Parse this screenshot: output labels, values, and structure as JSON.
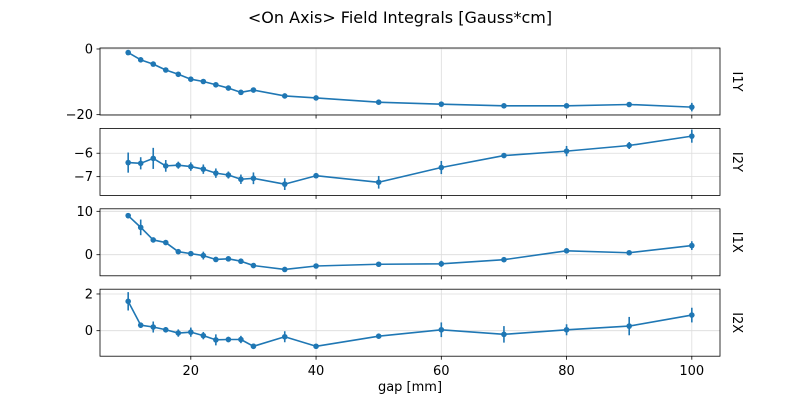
{
  "colors": {
    "line": "#1f77b4",
    "grid": "#dcdcdc",
    "frame": "#000000",
    "background": "#ffffff",
    "text": "#000000"
  },
  "chart_data": {
    "type": "line",
    "title": "<On Axis> Field Integrals [Gauss*cm]",
    "xlabel": "gap [mm]",
    "grid": true,
    "legend": "none",
    "marker": "point",
    "error_bars": true,
    "x": [
      10,
      12,
      14,
      16,
      18,
      20,
      22,
      24,
      26,
      28,
      30,
      35,
      40,
      50,
      60,
      70,
      80,
      90,
      100
    ],
    "xlim": [
      5.5,
      104.5
    ],
    "x_ticks": [
      20,
      40,
      60,
      80,
      100
    ],
    "x_tick_labels": [
      "20",
      "40",
      "60",
      "80",
      "100"
    ],
    "subplots": [
      {
        "ylabel": "I1Y",
        "ylabel_position": "right",
        "y_ticks": [
          0,
          -20
        ],
        "ylim": [
          -20.1,
          0.3
        ],
        "values": [
          -1.1,
          -3.3,
          -4.6,
          -6.4,
          -7.7,
          -9.2,
          -9.9,
          -10.9,
          -11.9,
          -13.2,
          -12.5,
          -14.3,
          -14.9,
          -16.2,
          -16.8,
          -17.3,
          -17.3,
          -16.9,
          -17.7
        ],
        "errors": [
          0.2,
          0.2,
          0.2,
          0.2,
          0.2,
          0.2,
          0.2,
          0.2,
          0.2,
          0.2,
          0.2,
          0.2,
          0.2,
          0.6,
          0.5,
          0.2,
          0.2,
          0.4,
          1.3
        ]
      },
      {
        "ylabel": "I2Y",
        "ylabel_position": "right",
        "y_ticks": [
          -6,
          -7
        ],
        "ylim": [
          -7.8,
          -4.94
        ],
        "values": [
          -6.4,
          -6.43,
          -6.22,
          -6.54,
          -6.51,
          -6.57,
          -6.68,
          -6.85,
          -6.93,
          -7.11,
          -7.07,
          -7.32,
          -6.96,
          -7.24,
          -6.61,
          -6.1,
          -5.91,
          -5.67,
          -5.27
        ],
        "errors": [
          0.43,
          0.26,
          0.45,
          0.25,
          0.15,
          0.18,
          0.2,
          0.2,
          0.15,
          0.2,
          0.25,
          0.25,
          0.1,
          0.27,
          0.28,
          0.1,
          0.22,
          0.15,
          0.28
        ]
      },
      {
        "ylabel": "I1X",
        "ylabel_position": "right",
        "y_ticks": [
          10,
          0
        ],
        "ylim": [
          -4.86,
          10.58
        ],
        "values": [
          9.0,
          6.3,
          3.4,
          2.8,
          0.7,
          0.25,
          -0.2,
          -1.1,
          -0.95,
          -1.5,
          -2.5,
          -3.4,
          -2.6,
          -2.2,
          -2.1,
          -1.15,
          0.9,
          0.45,
          2.1
        ],
        "errors": [
          0.6,
          1.8,
          0.45,
          0.4,
          0.3,
          0.5,
          0.9,
          0.4,
          0.3,
          0.4,
          0.3,
          0.3,
          0.4,
          0.3,
          0.7,
          0.4,
          0.5,
          0.3,
          1.0
        ]
      },
      {
        "ylabel": "I2X",
        "ylabel_position": "right",
        "y_ticks": [
          2,
          0
        ],
        "ylim": [
          -1.39,
          2.26
        ],
        "values": [
          1.6,
          0.3,
          0.2,
          0.05,
          -0.13,
          -0.08,
          -0.27,
          -0.5,
          -0.48,
          -0.48,
          -0.85,
          -0.33,
          -0.85,
          -0.3,
          0.05,
          -0.2,
          0.05,
          0.25,
          0.85
        ],
        "errors": [
          0.5,
          0.15,
          0.3,
          0.15,
          0.2,
          0.25,
          0.2,
          0.3,
          0.15,
          0.2,
          0.15,
          0.3,
          0.1,
          0.1,
          0.4,
          0.45,
          0.3,
          0.5,
          0.4
        ]
      }
    ]
  }
}
